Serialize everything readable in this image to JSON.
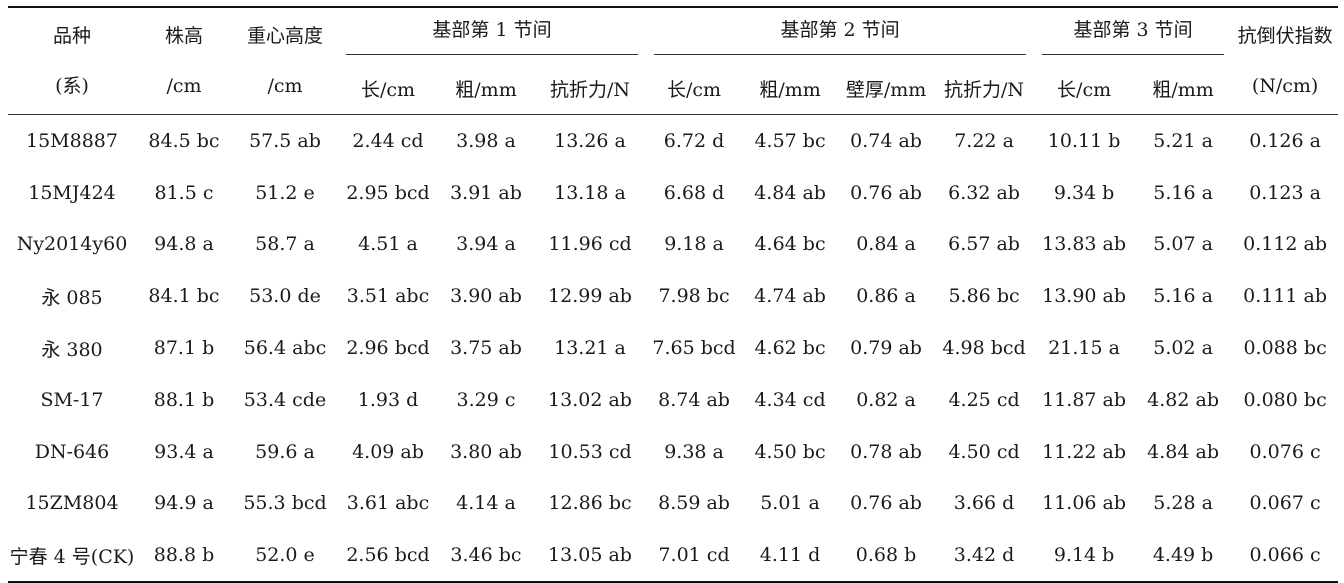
{
  "headers": {
    "variety_line1": "品种",
    "variety_line2": "(系)",
    "plant_height_line1": "株高",
    "plant_height_line2": "/cm",
    "cog_height_line1": "重心高度",
    "cog_height_line2": "/cm",
    "internode1": "基部第 1 节间",
    "internode2": "基部第 2 节间",
    "internode3": "基部第 3 节间",
    "lodging_index_line1": "抗倒伏指数",
    "lodging_index_line2": "(N/cm)",
    "sub": {
      "len": "长/cm",
      "diam": "粗/mm",
      "force": "抗折力/N",
      "wall": "壁厚/mm"
    }
  },
  "rows": [
    [
      "15M8887",
      "84.5 bc",
      "57.5 ab",
      "2.44 cd",
      "3.98 a",
      "13.26 a",
      "6.72 d",
      "4.57 bc",
      "0.74 ab",
      "7.22 a",
      "10.11 b",
      "5.21 a",
      "0.126 a"
    ],
    [
      "15MJ424",
      "81.5 c",
      "51.2 e",
      "2.95 bcd",
      "3.91 ab",
      "13.18 a",
      "6.68 d",
      "4.84 ab",
      "0.76 ab",
      "6.32 ab",
      "9.34 b",
      "5.16 a",
      "0.123 a"
    ],
    [
      "Ny2014y60",
      "94.8 a",
      "58.7 a",
      "4.51 a",
      "3.94 a",
      "11.96 cd",
      "9.18 a",
      "4.64 bc",
      "0.84 a",
      "6.57 ab",
      "13.83 ab",
      "5.07 a",
      "0.112 ab"
    ],
    [
      "永 085",
      "84.1 bc",
      "53.0 de",
      "3.51 abc",
      "3.90 ab",
      "12.99 ab",
      "7.98 bc",
      "4.74 ab",
      "0.86 a",
      "5.86 bc",
      "13.90 ab",
      "5.16 a",
      "0.111 ab"
    ],
    [
      "永 380",
      "87.1 b",
      "56.4 abc",
      "2.96 bcd",
      "3.75 ab",
      "13.21 a",
      "7.65 bcd",
      "4.62 bc",
      "0.79 ab",
      "4.98 bcd",
      "21.15 a",
      "5.02 a",
      "0.088 bc"
    ],
    [
      "SM-17",
      "88.1 b",
      "53.4 cde",
      "1.93 d",
      "3.29 c",
      "13.02 ab",
      "8.74 ab",
      "4.34 cd",
      "0.82 a",
      "4.25 cd",
      "11.87 ab",
      "4.82 ab",
      "0.080 bc"
    ],
    [
      "DN-646",
      "93.4 a",
      "59.6 a",
      "4.09 ab",
      "3.80 ab",
      "10.53 cd",
      "9.38 a",
      "4.50 bc",
      "0.78 ab",
      "4.50 cd",
      "11.22 ab",
      "4.84 ab",
      "0.076 c"
    ],
    [
      "15ZM804",
      "94.9 a",
      "55.3 bcd",
      "3.61 abc",
      "4.14 a",
      "12.86 bc",
      "8.59 ab",
      "5.01 a",
      "0.76 ab",
      "3.66 d",
      "11.06 ab",
      "5.28 a",
      "0.067 c"
    ],
    [
      "宁春 4 号(CK)",
      "88.8 b",
      "52.0 e",
      "2.56 bcd",
      "3.46 bc",
      "13.05 ab",
      "7.01 cd",
      "4.11 d",
      "0.68 b",
      "3.42 d",
      "9.14 b",
      "4.49 b",
      "0.066 c"
    ]
  ]
}
